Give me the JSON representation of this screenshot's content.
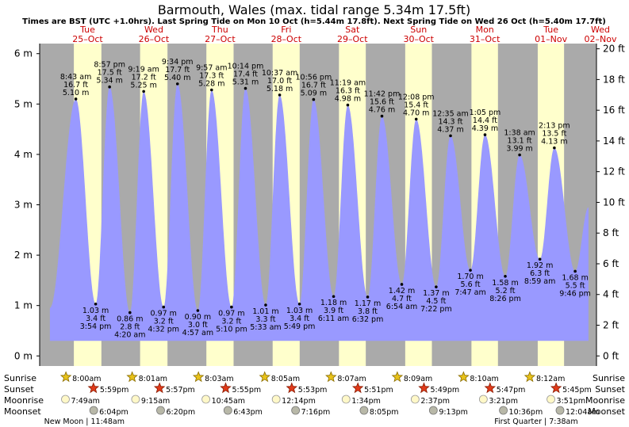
{
  "header": {
    "title": "Barmouth, Wales (max. tidal range 5.34m 17.5ft)",
    "subtitle": "Times are BST (UTC +1.0hrs). Last Spring Tide on Mon 10 Oct (h=5.44m 17.8ft). Next Spring Tide on Wed 26 Oct (h=5.40m 17.7ft)"
  },
  "colors": {
    "night": "#aaaaaa",
    "day": "#ffffcc",
    "tide": "#9999ff",
    "day_label": "#cc0000"
  },
  "chart_data": {
    "type": "area",
    "title": "Barmouth, Wales (max. tidal range 5.34m 17.5ft)",
    "left_axis": {
      "unit": "m",
      "range": [
        -0.2,
        6.2
      ],
      "ticks": [
        "0 m",
        "1 m",
        "2 m",
        "3 m",
        "4 m",
        "5 m",
        "6 m"
      ]
    },
    "right_axis": {
      "unit": "ft",
      "range": [
        -0.66,
        20.34
      ],
      "ticks": [
        "0 ft",
        "2 ft",
        "4 ft",
        "6 ft",
        "8 ft",
        "10 ft",
        "12 ft",
        "14 ft",
        "16 ft",
        "18 ft",
        "20 ft"
      ]
    },
    "days": [
      {
        "dow": "Tue",
        "date": "25–Oct"
      },
      {
        "dow": "Wed",
        "date": "26–Oct"
      },
      {
        "dow": "Thu",
        "date": "27–Oct"
      },
      {
        "dow": "Fri",
        "date": "28–Oct"
      },
      {
        "dow": "Sat",
        "date": "29–Oct"
      },
      {
        "dow": "Sun",
        "date": "30–Oct"
      },
      {
        "dow": "Mon",
        "date": "31–Oct"
      },
      {
        "dow": "Tue",
        "date": "01–Nov"
      },
      {
        "dow": "Wed",
        "date": "02–Nov"
      }
    ],
    "daylight": [
      {
        "sunrise_h": 8.0,
        "sunset_h": 17.98
      },
      {
        "sunrise_h": 8.02,
        "sunset_h": 17.95
      },
      {
        "sunrise_h": 8.05,
        "sunset_h": 17.92
      },
      {
        "sunrise_h": 8.08,
        "sunset_h": 17.88
      },
      {
        "sunrise_h": 8.12,
        "sunset_h": 17.85
      },
      {
        "sunrise_h": 8.15,
        "sunset_h": 17.82
      },
      {
        "sunrise_h": 8.17,
        "sunset_h": 17.78
      },
      {
        "sunrise_h": 8.2,
        "sunset_h": 17.75
      }
    ],
    "tides": [
      {
        "type": "low",
        "t": -0.7,
        "h": 0.95,
        "label": []
      },
      {
        "type": "high",
        "t": 8.72,
        "h": 5.1,
        "label": [
          "8:43 am",
          "16.7 ft",
          "5.10 m"
        ]
      },
      {
        "type": "low",
        "t": 15.9,
        "h": 1.03,
        "label": [
          "1.03 m",
          "3.4 ft",
          "3:54 pm"
        ]
      },
      {
        "type": "high",
        "t": 20.95,
        "h": 5.34,
        "label": [
          "8:57 pm",
          "17.5 ft",
          "5.34 m"
        ]
      },
      {
        "type": "low",
        "t": 28.33,
        "h": 0.86,
        "label": [
          "0.86 m",
          "2.8 ft",
          "4:20 am"
        ]
      },
      {
        "type": "high",
        "t": 33.32,
        "h": 5.25,
        "label": [
          "9:19 am",
          "17.2 ft",
          "5.25 m"
        ]
      },
      {
        "type": "low",
        "t": 40.53,
        "h": 0.97,
        "label": [
          "0.97 m",
          "3.2 ft",
          "4:32 pm"
        ]
      },
      {
        "type": "high",
        "t": 45.57,
        "h": 5.4,
        "label": [
          "9:34 pm",
          "17.7 ft",
          "5.40 m"
        ]
      },
      {
        "type": "low",
        "t": 52.95,
        "h": 0.9,
        "label": [
          "0.90 m",
          "3.0 ft",
          "4:57 am"
        ]
      },
      {
        "type": "high",
        "t": 57.95,
        "h": 5.28,
        "label": [
          "9:57 am",
          "17.3 ft",
          "5.28 m"
        ]
      },
      {
        "type": "low",
        "t": 65.17,
        "h": 0.97,
        "label": [
          "0.97 m",
          "3.2 ft",
          "5:10 pm"
        ]
      },
      {
        "type": "high",
        "t": 70.23,
        "h": 5.31,
        "label": [
          "10:14 pm",
          "17.4 ft",
          "5.31 m"
        ]
      },
      {
        "type": "low",
        "t": 77.55,
        "h": 1.01,
        "label": [
          "1.01 m",
          "3.3 ft",
          "5:33 am"
        ]
      },
      {
        "type": "high",
        "t": 82.62,
        "h": 5.18,
        "label": [
          "10:37 am",
          "17.0 ft",
          "5.18 m"
        ]
      },
      {
        "type": "low",
        "t": 89.82,
        "h": 1.03,
        "label": [
          "1.03 m",
          "3.4 ft",
          "5:49 pm"
        ]
      },
      {
        "type": "high",
        "t": 94.93,
        "h": 5.09,
        "label": [
          "10:56 pm",
          "16.7 ft",
          "5.09 m"
        ]
      },
      {
        "type": "low",
        "t": 102.18,
        "h": 1.18,
        "label": [
          "1.18 m",
          "3.9 ft",
          "6:11 am"
        ]
      },
      {
        "type": "high",
        "t": 107.32,
        "h": 4.98,
        "label": [
          "11:19 am",
          "16.3 ft",
          "4.98 m"
        ]
      },
      {
        "type": "low",
        "t": 114.53,
        "h": 1.17,
        "label": [
          "1.17 m",
          "3.8 ft",
          "6:32 pm"
        ]
      },
      {
        "type": "high",
        "t": 119.7,
        "h": 4.76,
        "label": [
          "11:42 pm",
          "15.6 ft",
          "4.76 m"
        ]
      },
      {
        "type": "low",
        "t": 126.9,
        "h": 1.42,
        "label": [
          "1.42 m",
          "4.7 ft",
          "6:54 am"
        ]
      },
      {
        "type": "high",
        "t": 132.13,
        "h": 4.7,
        "label": [
          "12:08 pm",
          "15.4 ft",
          "4.70 m"
        ]
      },
      {
        "type": "low",
        "t": 139.37,
        "h": 1.37,
        "label": [
          "1.37 m",
          "4.5 ft",
          "7:22 pm"
        ]
      },
      {
        "type": "high",
        "t": 144.58,
        "h": 4.37,
        "label": [
          "12:35 am",
          "14.3 ft",
          "4.37 m"
        ]
      },
      {
        "type": "low",
        "t": 151.78,
        "h": 1.7,
        "label": [
          "1.70 m",
          "5.6 ft",
          "7:47 am"
        ]
      },
      {
        "type": "high",
        "t": 157.08,
        "h": 4.39,
        "label": [
          "1:05 pm",
          "14.4 ft",
          "4.39 m"
        ]
      },
      {
        "type": "low",
        "t": 164.43,
        "h": 1.58,
        "label": [
          "1.58 m",
          "5.2 ft",
          "8:26 pm"
        ]
      },
      {
        "type": "high",
        "t": 169.63,
        "h": 3.99,
        "label": [
          "1:38 am",
          "13.1 ft",
          "3.99 m"
        ]
      },
      {
        "type": "low",
        "t": 176.98,
        "h": 1.92,
        "label": [
          "1.92 m",
          "6.3 ft",
          "8:59 am"
        ]
      },
      {
        "type": "high",
        "t": 182.22,
        "h": 4.13,
        "label": [
          "2:13 pm",
          "13.5 ft",
          "4.13 m"
        ]
      },
      {
        "type": "low",
        "t": 189.77,
        "h": 1.68,
        "label": [
          "1.68 m",
          "5.5 ft",
          "9:46 pm"
        ]
      },
      {
        "type": "high",
        "t": 194.6,
        "h": 2.95,
        "label": []
      }
    ]
  },
  "rows": {
    "labels": {
      "sunrise": "Sunrise",
      "sunset": "Sunset",
      "moonrise": "Moonrise",
      "moonset": "Moonset"
    },
    "sunrise": [
      {
        "t": 8.0,
        "text": "8:00am"
      },
      {
        "t": 32.02,
        "text": "8:01am"
      },
      {
        "t": 56.05,
        "text": "8:03am"
      },
      {
        "t": 80.08,
        "text": "8:05am"
      },
      {
        "t": 104.12,
        "text": "8:07am"
      },
      {
        "t": 128.15,
        "text": "8:09am"
      },
      {
        "t": 152.17,
        "text": "8:10am"
      },
      {
        "t": 176.2,
        "text": "8:12am"
      }
    ],
    "sunset": [
      {
        "t": 17.98,
        "text": "5:59pm"
      },
      {
        "t": 41.95,
        "text": "5:57pm"
      },
      {
        "t": 65.92,
        "text": "5:55pm"
      },
      {
        "t": 89.88,
        "text": "5:53pm"
      },
      {
        "t": 113.85,
        "text": "5:51pm"
      },
      {
        "t": 137.82,
        "text": "5:49pm"
      },
      {
        "t": 161.78,
        "text": "5:47pm"
      },
      {
        "t": 185.75,
        "text": "5:45pm"
      }
    ],
    "moonrise": [
      {
        "t": 7.82,
        "text": "7:49am"
      },
      {
        "t": 33.25,
        "text": "9:15am"
      },
      {
        "t": 58.75,
        "text": "10:45am"
      },
      {
        "t": 84.23,
        "text": "12:14pm"
      },
      {
        "t": 109.57,
        "text": "1:34pm"
      },
      {
        "t": 134.62,
        "text": "2:37pm"
      },
      {
        "t": 159.35,
        "text": "3:21pm"
      },
      {
        "t": 183.85,
        "text": "3:51pm"
      }
    ],
    "moonset": [
      {
        "t": 18.07,
        "text": "6:04pm"
      },
      {
        "t": 42.33,
        "text": "6:20pm"
      },
      {
        "t": 66.72,
        "text": "6:43pm"
      },
      {
        "t": 91.27,
        "text": "7:16pm"
      },
      {
        "t": 116.08,
        "text": "8:05pm"
      },
      {
        "t": 141.22,
        "text": "9:13pm"
      },
      {
        "t": 166.6,
        "text": "10:36pm"
      },
      {
        "t": 192.07,
        "text": "12:04am"
      }
    ],
    "phases": [
      {
        "t": 11.8,
        "text": "New Moon | 11:48am"
      },
      {
        "t": 175.63,
        "text": "First Quarter | 7:38am"
      }
    ]
  }
}
